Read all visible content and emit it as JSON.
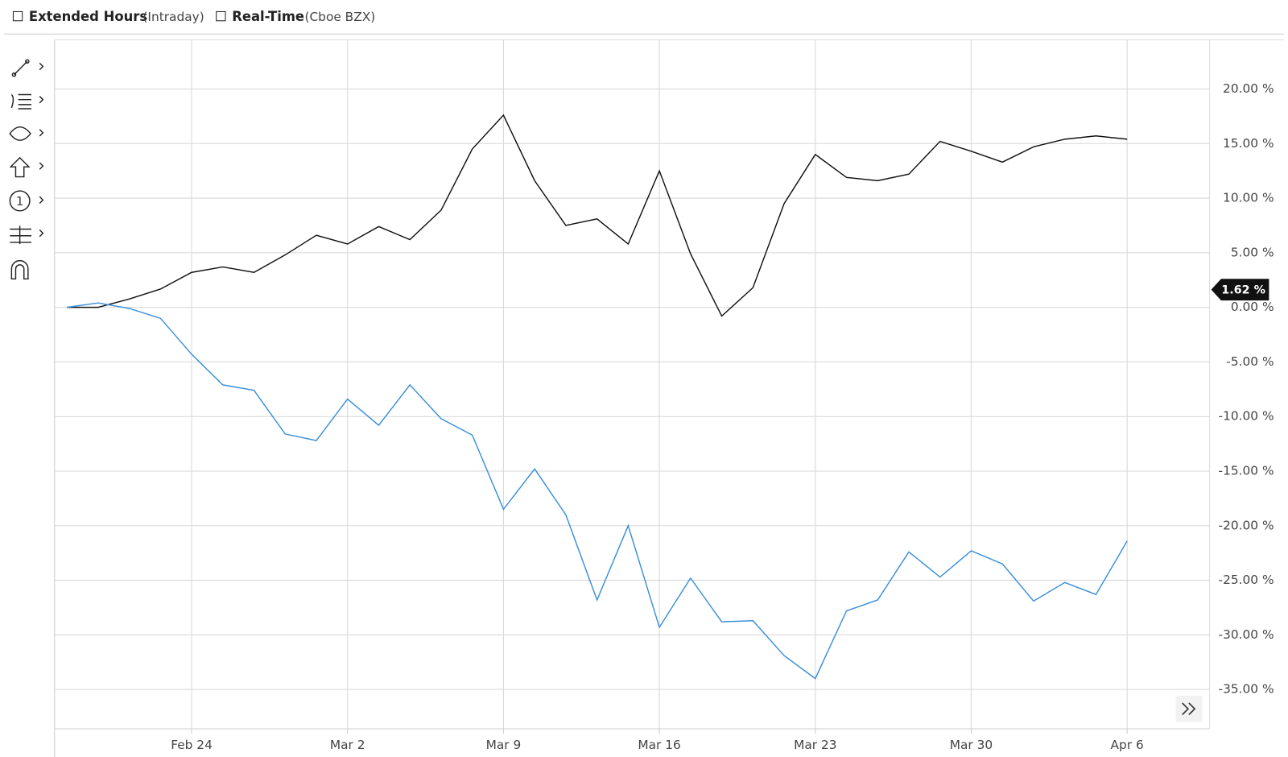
{
  "header": {
    "extended_hours": "Extended Hours",
    "extended_hours_note": "(Intraday)",
    "real_time": "Real-Time",
    "real_time_note": "(Cboe BZX)"
  },
  "chart_data": {
    "type": "line",
    "categories": [
      null,
      null,
      null,
      null,
      "Feb 24",
      null,
      null,
      null,
      null,
      "Mar 2",
      null,
      null,
      null,
      null,
      "Mar 9",
      null,
      null,
      null,
      null,
      "Mar 16",
      null,
      null,
      null,
      null,
      "Mar 23",
      null,
      null,
      null,
      null,
      "Mar 30",
      null,
      null,
      null,
      null,
      "Apr 6"
    ],
    "series": [
      {
        "color": "#111111",
        "values": [
          0,
          0,
          0.76,
          1.67,
          3.2,
          3.7,
          3.2,
          4.8,
          6.6,
          5.8,
          7.4,
          6.2,
          8.9,
          14.5,
          17.6,
          11.6,
          7.5,
          8.1,
          5.8,
          12.5,
          4.9,
          -0.8,
          1.8,
          9.5,
          14.0,
          11.9,
          11.6,
          12.2,
          15.2,
          14.3,
          13.3,
          14.7,
          15.4,
          15.7,
          15.4
        ]
      },
      {
        "color": "#3a8fd9",
        "values": [
          0,
          0.4,
          -0.1,
          -1.0,
          -4.3,
          -7.1,
          -7.6,
          -11.6,
          -12.2,
          -8.4,
          -10.8,
          -7.1,
          -10.2,
          -11.7,
          -18.5,
          -14.8,
          -19.0,
          -26.8,
          -20.0,
          -29.3,
          -24.8,
          -28.8,
          -28.7,
          -31.9,
          -34.0,
          -27.8,
          -26.8,
          -22.4,
          -24.7,
          -22.3,
          -23.5,
          -26.9,
          -25.2,
          -26.3,
          -21.4
        ]
      }
    ],
    "ylim": [
      -38.6,
      24.5
    ],
    "yticks": [
      {
        "value": 20,
        "label": "20.00 %"
      },
      {
        "value": 15,
        "label": "15.00 %"
      },
      {
        "value": 10,
        "label": "10.00 %"
      },
      {
        "value": 5,
        "label": "5.00 %"
      },
      {
        "value": 0,
        "label": "0.00 %"
      },
      {
        "value": -5,
        "label": "-5.00 %"
      },
      {
        "value": -10,
        "label": "-10.00 %"
      },
      {
        "value": -15,
        "label": "-15.00 %"
      },
      {
        "value": -20,
        "label": "-20.00 %"
      },
      {
        "value": -25,
        "label": "-25.00 %"
      },
      {
        "value": -30,
        "label": "-30.00 %"
      },
      {
        "value": -35,
        "label": "-35.00 %"
      }
    ],
    "grid": true,
    "current": {
      "value": 1.62,
      "label": "1.62 %"
    }
  }
}
